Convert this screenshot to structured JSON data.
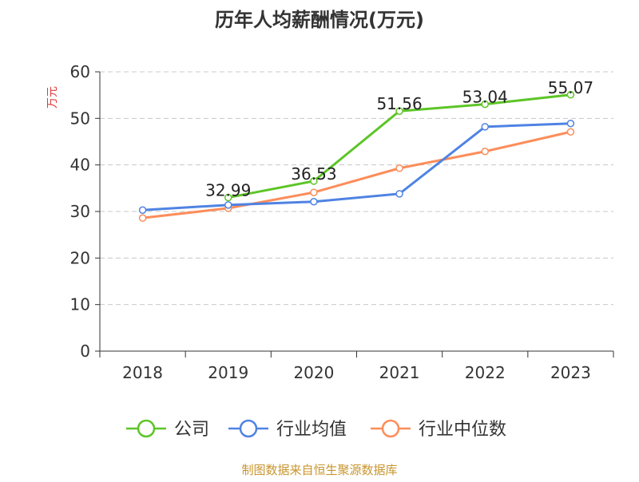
{
  "chart_data": {
    "type": "line",
    "title": "历年人均薪酬情况(万元)",
    "ylabel": "万元",
    "xlabel": "",
    "ylim": [
      0,
      60
    ],
    "yticks": [
      0,
      10,
      20,
      30,
      40,
      50,
      60
    ],
    "grid": true,
    "legend_position": "bottom",
    "categories": [
      "2018",
      "2019",
      "2020",
      "2021",
      "2022",
      "2023"
    ],
    "series": [
      {
        "name": "公司",
        "color": "#5cc527",
        "values": [
          null,
          32.99,
          36.53,
          51.56,
          53.04,
          55.07
        ],
        "labels": true
      },
      {
        "name": "行业均值",
        "color": "#4f83e3",
        "values": [
          30.3,
          31.4,
          32.1,
          33.8,
          48.2,
          48.9
        ],
        "labels": false
      },
      {
        "name": "行业中位数",
        "color": "#fc8d5a",
        "values": [
          28.6,
          30.7,
          34.1,
          39.3,
          42.9,
          47.1
        ],
        "labels": false
      }
    ]
  },
  "footer": "制图数据来自恒生聚源数据库",
  "footer_color": "#c8952e"
}
